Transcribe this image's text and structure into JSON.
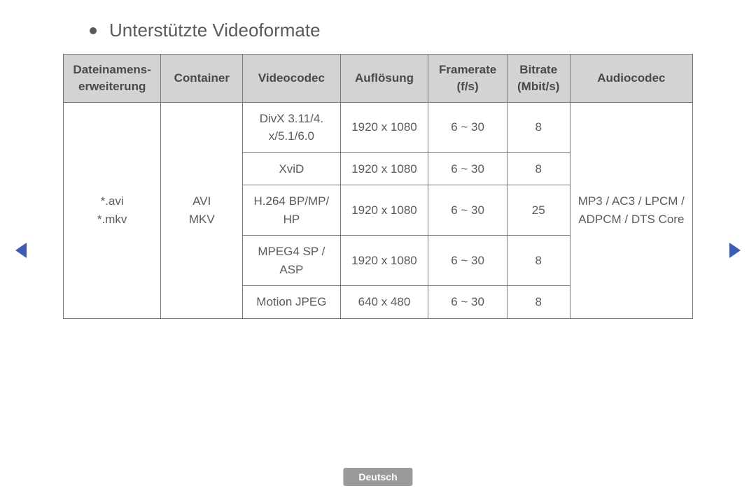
{
  "title": "Unterstützte Videoformate",
  "footer_label": "Deutsch",
  "colors": {
    "header_bg": "#d4d3d3",
    "border": "#7a7a7a",
    "text": "#5a5a5a",
    "nav_arrow": "#3b5bb5",
    "footer_bg": "#9a9a9a",
    "footer_text": "#ffffff",
    "page_bg": "#ffffff"
  },
  "table": {
    "columns": [
      "Dateinamens-\nerweiterung",
      "Container",
      "Videocodec",
      "Auflösung",
      "Framerate\n(f/s)",
      "Bitrate\n(Mbit/s)",
      "Audiocodec"
    ],
    "extension": "*.avi\n*.mkv",
    "container": "AVI\nMKV",
    "audiocodec": "MP3 / AC3 / LPCM / ADPCM / DTS Core",
    "rows": [
      {
        "codec": "DivX 3.11/4.\nx/5.1/6.0",
        "resolution": "1920 x 1080",
        "framerate": "6 ~ 30",
        "bitrate": "8"
      },
      {
        "codec": "XviD",
        "resolution": "1920 x 1080",
        "framerate": "6 ~ 30",
        "bitrate": "8"
      },
      {
        "codec": "H.264 BP/MP/\nHP",
        "resolution": "1920 x 1080",
        "framerate": "6 ~ 30",
        "bitrate": "25"
      },
      {
        "codec": "MPEG4 SP /\nASP",
        "resolution": "1920 x 1080",
        "framerate": "6 ~ 30",
        "bitrate": "8"
      },
      {
        "codec": "Motion JPEG",
        "resolution": "640 x 480",
        "framerate": "6 ~ 30",
        "bitrate": "8"
      }
    ]
  }
}
